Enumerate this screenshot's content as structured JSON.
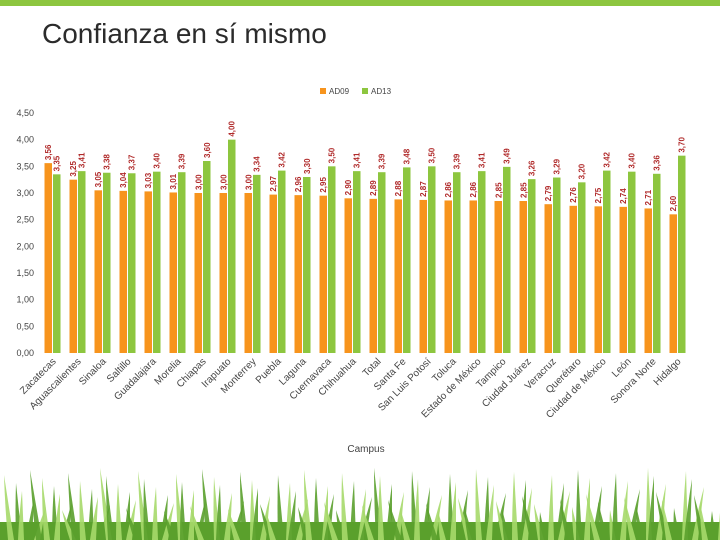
{
  "title": "Confianza en sí mismo",
  "colors": {
    "ad09": "#f7941d",
    "ad13": "#8dc63f",
    "title": "#2b2b2b",
    "grass_dark": "#5aa02c",
    "grass_light": "#a6d96a"
  },
  "chart_data": {
    "type": "bar",
    "xlabel": "Campus",
    "ylabel": "",
    "ylim": [
      0,
      4.5
    ],
    "yticks": [
      "0,00",
      "0,50",
      "1,00",
      "1,50",
      "2,00",
      "2,50",
      "3,00",
      "3,50",
      "4,00",
      "4,50"
    ],
    "legend_position": "top",
    "grid": false,
    "categories": [
      "Zacatecas",
      "Aguascalientes",
      "Sinaloa",
      "Saltillo",
      "Guadalajara",
      "Morelia",
      "Chiapas",
      "Irapuato",
      "Monterrey",
      "Puebla",
      "Laguna",
      "Cuernavaca",
      "Chihuahua",
      "Total",
      "Santa Fe",
      "San Luis Potosí",
      "Toluca",
      "Estado de México",
      "Tampico",
      "Ciudad Juárez",
      "Veracruz",
      "Querétaro",
      "Ciudad de México",
      "León",
      "Sonora Norte",
      "Hidalgo"
    ],
    "series": [
      {
        "name": "AD09",
        "values": [
          3.56,
          3.25,
          3.05,
          3.04,
          3.03,
          3.01,
          3.0,
          3.0,
          3.0,
          2.97,
          2.96,
          2.95,
          2.9,
          2.89,
          2.88,
          2.87,
          2.86,
          2.86,
          2.85,
          2.85,
          2.79,
          2.76,
          2.75,
          2.74,
          2.71,
          2.6
        ],
        "labels": [
          "3,56",
          "3,25",
          "3,05",
          "3,04",
          "3,03",
          "3,01",
          "3,00",
          "3,00",
          "3,00",
          "2,97",
          "2,96",
          "2,95",
          "2,90",
          "2,89",
          "2,88",
          "2,87",
          "2,86",
          "2,86",
          "2,85",
          "2,85",
          "2,79",
          "2,76",
          "2,75",
          "2,74",
          "2,71",
          "2,60"
        ]
      },
      {
        "name": "AD13",
        "values": [
          3.35,
          3.41,
          3.38,
          3.37,
          3.4,
          3.39,
          3.6,
          4.0,
          3.34,
          3.42,
          3.3,
          3.5,
          3.41,
          3.39,
          3.48,
          3.5,
          3.39,
          3.41,
          3.49,
          3.26,
          3.29,
          3.2,
          3.42,
          3.4,
          3.36,
          3.7
        ],
        "labels": [
          "3,35",
          "3,41",
          "3,38",
          "3,37",
          "3,40",
          "3,39",
          "3,60",
          "4,00",
          "3,34",
          "3,42",
          "3,30",
          "3,50",
          "3,41",
          "3,39",
          "3,48",
          "3,50",
          "3,39",
          "3,41",
          "3,49",
          "3,26",
          "3,29",
          "3,20",
          "3,42",
          "3,40",
          "3,36",
          "3,70"
        ]
      }
    ]
  }
}
